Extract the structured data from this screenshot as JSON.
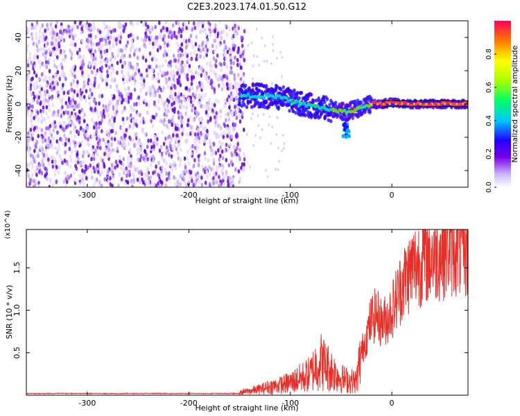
{
  "title": "C2E3.2023.174.01.50.G12",
  "chart_data": [
    {
      "type": "heatmap",
      "xlabel": "Height of straight line (km)",
      "ylabel": "Frequency (Hz)",
      "xlim": [
        -360,
        75
      ],
      "ylim": [
        -50,
        50
      ],
      "xticks": [
        -300,
        -200,
        -100,
        0
      ],
      "yticks": [
        -40,
        -20,
        0,
        20,
        40
      ],
      "grid": false,
      "colorbar": {
        "label": "Normalized spectral amplitude",
        "range": [
          0,
          1
        ],
        "ticks": [
          0.0,
          0.2,
          0.4,
          0.6,
          0.8
        ],
        "colormap": "rainbow-violet-to-red"
      },
      "trace": {
        "description_points_x": [
          -150,
          -130,
          -110,
          -90,
          -70,
          -55,
          -45,
          -35,
          -20,
          -10,
          0,
          10,
          30,
          50,
          75
        ],
        "description_points_y": [
          5,
          5,
          4,
          0,
          -2,
          -4,
          -5,
          -3,
          0,
          0,
          1,
          0,
          0,
          0,
          0
        ]
      },
      "noise_region_x": [
        -360,
        -145
      ]
    },
    {
      "type": "line",
      "xlabel": "Height of straight line (km)",
      "ylabel": "SNR (10 * v/v)",
      "y_multiplier": "(x10^4)",
      "xlim": [
        -360,
        75
      ],
      "ylim": [
        0,
        1.95
      ],
      "xticks": [
        -300,
        -200,
        -100,
        0
      ],
      "yticks": [
        0.5,
        1.0,
        1.5
      ],
      "grid": false,
      "series": [
        {
          "color": "#e8302a",
          "x": [
            -360,
            -300,
            -250,
            -200,
            -150,
            -140,
            -130,
            -120,
            -110,
            -100,
            -90,
            -80,
            -75,
            -70,
            -65,
            -60,
            -55,
            -50,
            -45,
            -40,
            -35,
            -30,
            -25,
            -20,
            -15,
            -10,
            -5,
            0,
            10,
            20,
            30,
            40,
            50,
            60,
            75
          ],
          "y": [
            0.02,
            0.02,
            0.02,
            0.02,
            0.03,
            0.05,
            0.07,
            0.1,
            0.12,
            0.15,
            0.2,
            0.25,
            0.35,
            0.4,
            0.35,
            0.3,
            0.25,
            0.2,
            0.18,
            0.17,
            0.16,
            0.5,
            0.7,
            0.9,
            0.95,
            0.85,
            0.9,
            1.0,
            1.3,
            1.5,
            1.6,
            1.65,
            1.7,
            1.75,
            1.72
          ]
        }
      ]
    }
  ]
}
